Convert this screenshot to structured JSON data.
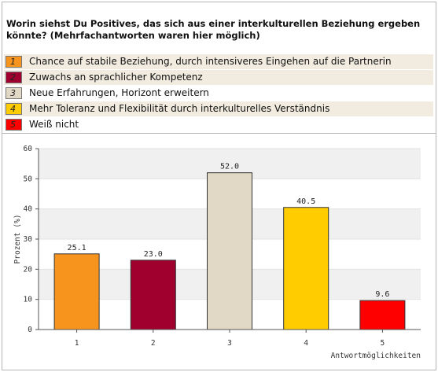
{
  "question": "Worin siehst Du Positives, das sich aus einer interkulturellen Beziehung ergeben könnte? (Mehrfachantworten waren hier möglich)",
  "legend": [
    {
      "num": "1",
      "label": "Chance auf stabile Beziehung, durch intensiveres Eingehen auf die Partnerin",
      "color": "#f7941d"
    },
    {
      "num": "2",
      "label": "Zuwachs an sprachlicher Kompetenz",
      "color": "#a0002e"
    },
    {
      "num": "3",
      "label": "Neue Erfahrungen, Horizont erweitern",
      "color": "#e2d8c6"
    },
    {
      "num": "4",
      "label": "Mehr Toleranz und Flexibilität durch interkulturelles Verständnis",
      "color": "#ffcc00"
    },
    {
      "num": "5",
      "label": "Weiß nicht",
      "color": "#ff0000"
    }
  ],
  "chart_data": {
    "type": "bar",
    "categories": [
      "1",
      "2",
      "3",
      "4",
      "5"
    ],
    "values": [
      25.1,
      23.0,
      52.0,
      40.5,
      9.6
    ],
    "value_labels": [
      "25.1",
      "23.0",
      "52.0",
      "40.5",
      "9.6"
    ],
    "colors": [
      "#f7941d",
      "#a0002e",
      "#e2d8c6",
      "#ffcc00",
      "#ff0000"
    ],
    "ylabel": "Prozent (%)",
    "xlabel": "Antwortmöglichkeiten",
    "ylim": [
      0,
      60
    ],
    "yticks": [
      0,
      10,
      20,
      30,
      40,
      50,
      60
    ],
    "grid": true
  }
}
